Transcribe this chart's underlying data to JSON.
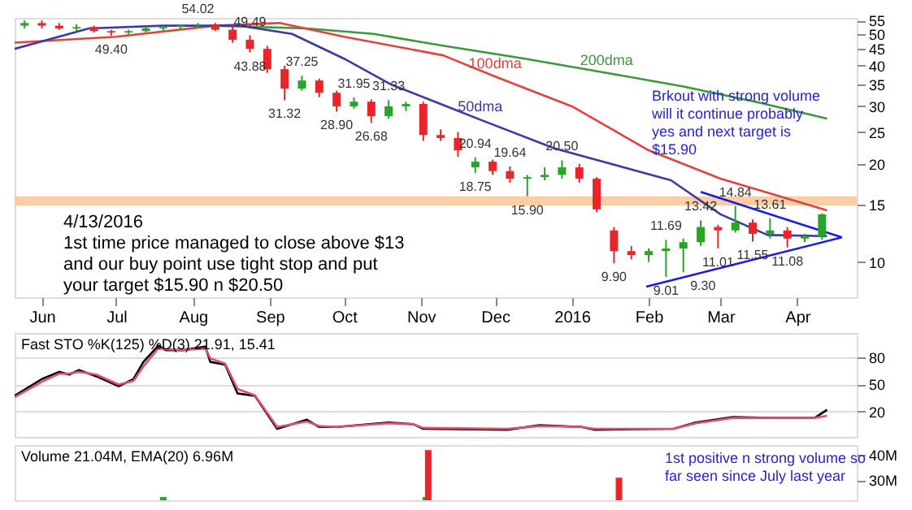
{
  "chart_data": [
    {
      "type": "candlestick",
      "log": true,
      "tick_labels": true,
      "xlim": [
        "2015-05-21",
        "2016-04-25"
      ],
      "xticks": [
        {
          "value": "2015-06-01",
          "label": "Jun"
        },
        {
          "value": "2015-07-01",
          "label": "Jul"
        },
        {
          "value": "2015-08-01",
          "label": "Aug"
        },
        {
          "value": "2015-09-01",
          "label": "Sep"
        },
        {
          "value": "2015-10-01",
          "label": "Oct"
        },
        {
          "value": "2015-11-01",
          "label": "Nov"
        },
        {
          "value": "2015-12-01",
          "label": "Dec"
        },
        {
          "value": "2016-01-01",
          "label": "2016"
        },
        {
          "value": "2016-02-01",
          "label": "Feb"
        },
        {
          "value": "2016-03-01",
          "label": "Mar"
        },
        {
          "value": "2016-04-01",
          "label": "Apr"
        }
      ],
      "ylim": [
        7.8,
        56
      ],
      "yticks": [
        10,
        15,
        20,
        25,
        30,
        35,
        40,
        45,
        50,
        55
      ],
      "x": [
        "2015-05-25",
        "2015-06-01",
        "2015-06-08",
        "2015-06-15",
        "2015-06-22",
        "2015-06-29",
        "2015-07-06",
        "2015-07-13",
        "2015-07-20",
        "2015-07-27",
        "2015-08-03",
        "2015-08-10",
        "2015-08-17",
        "2015-08-24",
        "2015-08-31",
        "2015-09-07",
        "2015-09-14",
        "2015-09-21",
        "2015-09-28",
        "2015-10-05",
        "2015-10-12",
        "2015-10-19",
        "2015-10-26",
        "2015-11-02",
        "2015-11-09",
        "2015-11-16",
        "2015-11-23",
        "2015-11-30",
        "2015-12-07",
        "2015-12-14",
        "2015-12-21",
        "2015-12-28",
        "2016-01-04",
        "2016-01-11",
        "2016-01-18",
        "2016-01-25",
        "2016-02-01",
        "2016-02-08",
        "2016-02-15",
        "2016-02-22",
        "2016-02-29",
        "2016-03-07",
        "2016-03-14",
        "2016-03-21",
        "2016-03-28",
        "2016-04-04",
        "2016-04-11"
      ],
      "ohlc": [
        [
          53,
          55,
          52,
          54
        ],
        [
          54,
          55,
          52,
          53
        ],
        [
          53,
          54,
          51.5,
          52
        ],
        [
          52,
          53.5,
          51,
          52.5
        ],
        [
          52.5,
          53,
          50.5,
          51
        ],
        [
          51,
          51.5,
          49.4,
          50.5
        ],
        [
          50.5,
          51.5,
          49.8,
          51
        ],
        [
          51,
          52.5,
          50.5,
          52
        ],
        [
          52,
          53,
          51,
          52.5
        ],
        [
          52.5,
          53.5,
          51.5,
          53
        ],
        [
          53,
          54.02,
          52,
          53.5
        ],
        [
          53.5,
          54,
          51,
          51.5
        ],
        [
          51.5,
          53,
          47,
          48
        ],
        [
          48,
          49.49,
          43.88,
          45
        ],
        [
          45,
          46,
          38,
          39
        ],
        [
          39,
          40,
          31.32,
          34
        ],
        [
          34,
          37.25,
          33.5,
          36
        ],
        [
          36,
          36.5,
          32,
          33
        ],
        [
          33,
          33.5,
          28.9,
          30
        ],
        [
          30,
          31.95,
          29.5,
          31
        ],
        [
          31,
          31.5,
          26.68,
          28
        ],
        [
          28,
          31.33,
          27.5,
          30
        ],
        [
          30,
          31,
          29,
          30.5
        ],
        [
          30.5,
          31,
          23.5,
          24.5
        ],
        [
          24.5,
          25.5,
          23.5,
          24
        ],
        [
          24,
          25,
          21,
          22
        ],
        [
          19.5,
          20.94,
          18.75,
          20.3
        ],
        [
          20.3,
          20.6,
          18.5,
          19
        ],
        [
          19,
          19.64,
          17.5,
          18
        ],
        [
          18,
          18.5,
          15.9,
          18.2
        ],
        [
          18.2,
          19.5,
          17.8,
          18.5
        ],
        [
          18.5,
          20.5,
          18,
          19.5
        ],
        [
          19.5,
          20,
          17.5,
          18
        ],
        [
          18,
          18.2,
          14.2,
          14.5
        ],
        [
          12.5,
          12.8,
          9.9,
          10.8
        ],
        [
          10.8,
          11.2,
          10.2,
          10.5
        ],
        [
          10.5,
          11,
          10,
          10.8
        ],
        [
          10.8,
          11.69,
          9.01,
          11
        ],
        [
          11,
          11.8,
          9.3,
          11.5
        ],
        [
          11.5,
          13.42,
          11.2,
          12.8
        ],
        [
          12.8,
          13,
          11.01,
          12.5
        ],
        [
          12.5,
          14.84,
          12.3,
          13.2
        ],
        [
          13.2,
          13.5,
          11.55,
          12.2
        ],
        [
          12.2,
          13.61,
          11.8,
          12.5
        ],
        [
          12.5,
          12.8,
          11.08,
          11.8
        ],
        [
          11.8,
          12.2,
          11.5,
          12
        ],
        [
          12,
          14.1,
          11.7,
          14
        ]
      ],
      "colors": [
        "#26a626",
        "#e8262a",
        "#e8262a",
        "#26a626",
        "#e8262a",
        "#e8262a",
        "#26a626",
        "#26a626",
        "#26a626",
        "#26a626",
        "#26a626",
        "#e8262a",
        "#e8262a",
        "#e8262a",
        "#e8262a",
        "#e8262a",
        "#26a626",
        "#e8262a",
        "#e8262a",
        "#26a626",
        "#e8262a",
        "#26a626",
        "#26a626",
        "#e8262a",
        "#e8262a",
        "#e8262a",
        "#26a626",
        "#e8262a",
        "#e8262a",
        "#26a626",
        "#26a626",
        "#26a626",
        "#e8262a",
        "#e8262a",
        "#e8262a",
        "#e8262a",
        "#26a626",
        "#26a626",
        "#26a626",
        "#26a626",
        "#e8262a",
        "#26a626",
        "#e8262a",
        "#26a626",
        "#e8262a",
        "#26a626",
        "#26a626"
      ],
      "series": [
        {
          "name": "200dma",
          "type": "line",
          "color": "#3a9a3a",
          "x": [
            "2015-08-10",
            "2015-09-16",
            "2015-10-13",
            "2015-11-10",
            "2015-12-13",
            "2016-01-15",
            "2016-02-15",
            "2016-03-15",
            "2016-04-13"
          ],
          "values": [
            53,
            52,
            50,
            46,
            42,
            38,
            34.5,
            31,
            27.5
          ]
        },
        {
          "name": "100dma",
          "type": "line",
          "color": "#e8413c",
          "x": [
            "2015-05-21",
            "2015-07-01",
            "2015-08-10",
            "2015-09-05",
            "2015-10-01",
            "2015-11-10",
            "2015-12-01",
            "2016-01-01",
            "2016-02-01",
            "2016-03-01",
            "2016-04-13"
          ],
          "values": [
            47,
            49,
            53,
            54,
            49,
            43,
            37,
            30,
            22,
            18,
            14.4
          ]
        },
        {
          "name": "50dma",
          "type": "line",
          "color": "#3a3aa8",
          "x": [
            "2015-05-21",
            "2015-06-20",
            "2015-07-20",
            "2015-08-20",
            "2015-09-10",
            "2015-10-01",
            "2015-10-20",
            "2015-11-10",
            "2015-11-25",
            "2015-12-25",
            "2016-02-10",
            "2016-03-01",
            "2016-03-20",
            "2016-04-13"
          ],
          "values": [
            45,
            52,
            53,
            53,
            50,
            42,
            35,
            30.3,
            27.3,
            22.3,
            17.8,
            14,
            12.1,
            12
          ]
        },
        {
          "type": "line",
          "color": "#1a1aee",
          "x": [
            "2016-02-22",
            "2016-04-19"
          ],
          "values": [
            16.4,
            11.9
          ]
        },
        {
          "type": "line",
          "color": "#1a1aee",
          "x": [
            "2016-01-31",
            "2016-04-19"
          ],
          "values": [
            8.4,
            11.9
          ]
        }
      ],
      "bands": [
        {
          "axis": "y",
          "from": 14.9,
          "to": 15.9,
          "color": "#f9c89a"
        }
      ],
      "annotations": [
        "4/13/2016\n1st time price managed to close above $13\nand our buy point use tight stop and put\nyour target $15.90 n $20.50",
        "Brkout with strong volume\nwill it continue probably\nyes and next target is\n$15.90",
        {
          "text": "49.40",
          "x": "2015-06-29",
          "y": 49.4
        },
        {
          "text": "54.02",
          "x": "2015-08-03",
          "y": 54.02
        },
        {
          "text": "49.49",
          "x": "2015-08-24",
          "y": 49.49
        },
        {
          "text": "43.88",
          "x": "2015-08-24",
          "y": 43.88
        },
        {
          "text": "31.32",
          "x": "2015-09-07",
          "y": 31.32
        },
        {
          "text": "37.25",
          "x": "2015-09-14",
          "y": 37.25
        },
        {
          "text": "28.90",
          "x": "2015-09-28",
          "y": 28.9
        },
        {
          "text": "31.95",
          "x": "2015-10-05",
          "y": 31.95
        },
        {
          "text": "26.68",
          "x": "2015-10-12",
          "y": 26.68
        },
        {
          "text": "31.33",
          "x": "2015-10-19",
          "y": 31.33
        },
        {
          "text": "20.94",
          "x": "2015-11-23",
          "y": 20.94
        },
        {
          "text": "18.75",
          "x": "2015-11-23",
          "y": 18.75
        },
        {
          "text": "19.64",
          "x": "2015-12-07",
          "y": 19.64
        },
        {
          "text": "15.90",
          "x": "2015-12-14",
          "y": 15.9
        },
        {
          "text": "20.50",
          "x": "2015-12-28",
          "y": 20.5
        },
        {
          "text": "9.90",
          "x": "2016-01-18",
          "y": 9.9
        },
        {
          "text": "9.01",
          "x": "2016-02-08",
          "y": 9.01
        },
        {
          "text": "11.69",
          "x": "2016-02-08",
          "y": 11.69
        },
        {
          "text": "9.30",
          "x": "2016-02-15",
          "y": 9.3
        },
        {
          "text": "13.42",
          "x": "2016-02-22",
          "y": 13.42
        },
        {
          "text": "11.01",
          "x": "2016-02-29",
          "y": 11.01
        },
        {
          "text": "14.84",
          "x": "2016-03-07",
          "y": 14.84
        },
        {
          "text": "11.55",
          "x": "2016-03-14",
          "y": 11.55
        },
        {
          "text": "13.61",
          "x": "2016-03-21",
          "y": 13.61
        },
        {
          "text": "11.08",
          "x": "2016-03-28",
          "y": 11.08
        }
      ]
    },
    {
      "type": "line",
      "title": "Fast STO %K(125) %D(3) 21.91, 15.41",
      "grid": "y",
      "tick_labels": "y",
      "xlim": [
        "2015-05-21",
        "2016-04-25"
      ],
      "ylim": [
        -8,
        107
      ],
      "yticks": [
        20,
        50,
        80
      ],
      "x": [
        "2015-05-21",
        "2015-06-01",
        "2015-06-08",
        "2015-06-12",
        "2015-06-16",
        "2015-06-23",
        "2015-07-02",
        "2015-07-08",
        "2015-07-12",
        "2015-07-18",
        "2015-07-21",
        "2015-07-28",
        "2015-08-06",
        "2015-08-08",
        "2015-08-14",
        "2015-08-19",
        "2015-08-26",
        "2015-09-04",
        "2015-09-16",
        "2015-09-21",
        "2015-09-28",
        "2015-10-19",
        "2015-10-29",
        "2015-11-02",
        "2015-12-06",
        "2015-12-19",
        "2016-01-05",
        "2016-01-10",
        "2016-02-11",
        "2016-02-20",
        "2016-03-06",
        "2016-03-21",
        "2016-04-08",
        "2016-04-13"
      ],
      "series": [
        {
          "color": "#000000",
          "values": [
            37.5,
            56,
            64,
            61,
            66,
            59,
            48,
            56,
            75,
            93,
            88,
            88,
            92,
            75,
            72,
            40,
            37.5,
            1,
            11,
            3,
            3,
            8,
            6,
            1,
            0,
            5,
            3,
            0,
            1,
            8,
            14,
            13,
            13,
            21.91
          ]
        },
        {
          "color": "#e05070",
          "values": [
            36,
            53,
            62,
            62,
            64,
            61,
            50,
            54,
            70,
            90,
            89,
            88,
            90,
            79,
            73,
            45,
            38,
            3,
            9,
            4,
            3,
            7,
            6,
            2,
            1,
            4,
            3,
            1,
            1,
            7,
            13,
            13,
            13,
            15.41
          ]
        }
      ]
    },
    {
      "type": "bar",
      "title": "Volume 21.04M, EMA(20) 6.96M",
      "tick_labels": "y",
      "xlim": [
        "2015-05-21",
        "2016-04-25"
      ],
      "ylim": [
        22,
        44
      ],
      "yticks": [
        {
          "value": 30,
          "label": "30M"
        },
        {
          "value": 40,
          "label": "40M"
        }
      ],
      "x": [
        "2015-07-20",
        "2015-11-03",
        "2015-11-04",
        "2016-01-20"
      ],
      "values": [
        23.3,
        23.3,
        42,
        31
      ],
      "colors": [
        "#26a626",
        "#26a626",
        "#e8262a",
        "#e8262a"
      ],
      "annotations": [
        "1st positive n strong volume so\nfar seen since July last year"
      ]
    }
  ]
}
